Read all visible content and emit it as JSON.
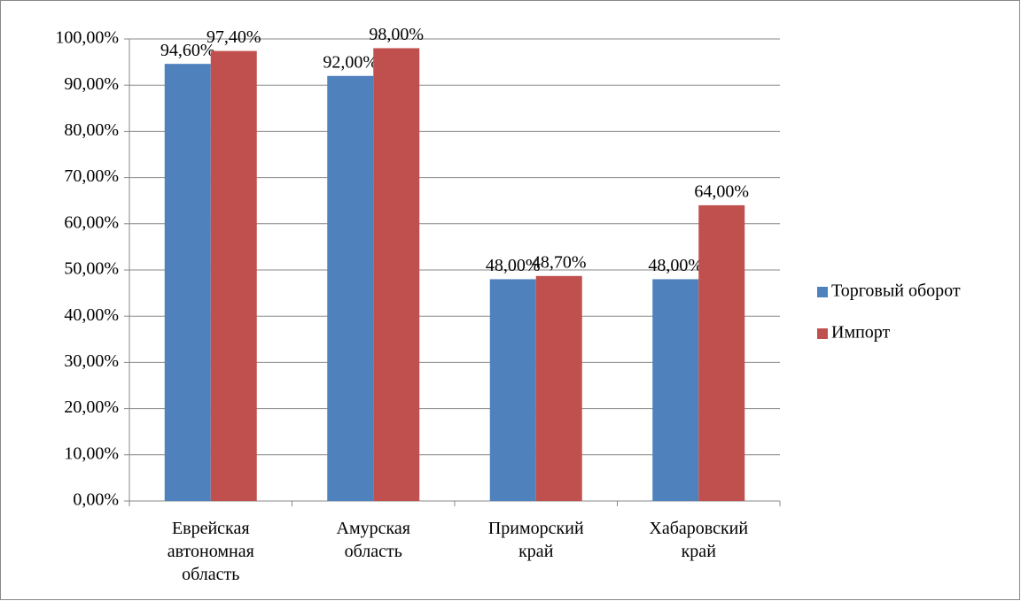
{
  "chart_data": {
    "type": "bar",
    "categories": [
      "Еврейская автономная область",
      "Амурская область",
      "Приморский край",
      "Хабаровский край"
    ],
    "series": [
      {
        "name": "Торговый оборот",
        "color": "#4f81bd",
        "values": [
          94.6,
          92,
          48,
          48
        ],
        "value_labels": [
          "94,60%",
          "92,00%",
          "48,00%",
          "48,00%"
        ]
      },
      {
        "name": "Импорт",
        "color": "#c0504d",
        "values": [
          97.4,
          98,
          48.7,
          64
        ],
        "value_labels": [
          "97,40%",
          "98,00%",
          "48,70%",
          "64,00%"
        ]
      }
    ],
    "ylim": [
      0,
      100
    ],
    "yticks": [
      {
        "value": 0,
        "label": "0,00%"
      },
      {
        "value": 10,
        "label": "10,00%"
      },
      {
        "value": 20,
        "label": "20,00%"
      },
      {
        "value": 30,
        "label": "30,00%"
      },
      {
        "value": 40,
        "label": "40,00%"
      },
      {
        "value": 50,
        "label": "50,00%"
      },
      {
        "value": 60,
        "label": "60,00%"
      },
      {
        "value": 70,
        "label": "70,00%"
      },
      {
        "value": 80,
        "label": "80,00%"
      },
      {
        "value": 90,
        "label": "90,00%"
      },
      {
        "value": 100,
        "label": "100,00%"
      }
    ],
    "grid": true,
    "legend": "right"
  }
}
